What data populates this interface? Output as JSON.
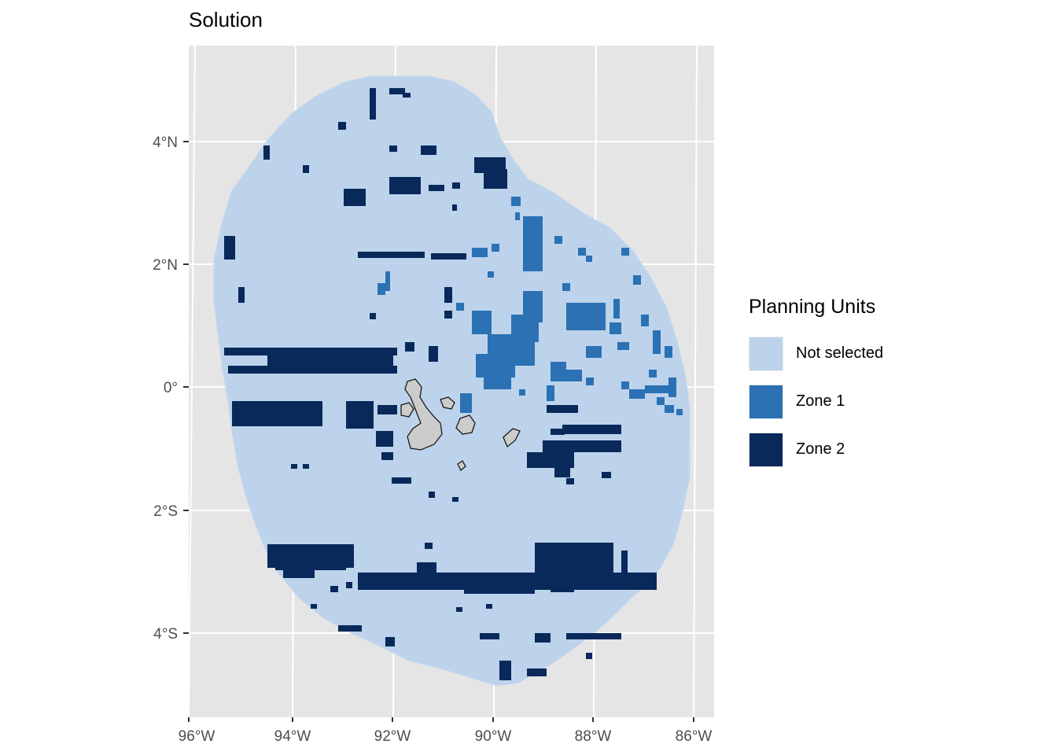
{
  "title": "Solution",
  "axes": {
    "x_ticks": [
      "96°W",
      "94°W",
      "92°W",
      "90°W",
      "88°W",
      "86°W"
    ],
    "y_ticks": [
      "4°N",
      "2°N",
      "0°",
      "2°S",
      "4°S"
    ]
  },
  "legend": {
    "title": "Planning Units",
    "items": [
      {
        "label": "Not selected",
        "color": "#bdd3ec"
      },
      {
        "label": "Zone 1",
        "color": "#2b71b4"
      },
      {
        "label": "Zone 2",
        "color": "#08295a"
      }
    ]
  },
  "colors": {
    "panel_background": "#e5e5e5",
    "grid": "#ffffff",
    "not_selected": "#bdd3ec",
    "zone1": "#2b71b4",
    "zone2": "#08295a",
    "island_fill": "#cccccc",
    "island_stroke": "#1a1a1a"
  },
  "map_data": {
    "type": "planning-unit-solution-map",
    "x_range": [
      "96°W",
      "86°W"
    ],
    "y_range": [
      "5°S",
      "5°N"
    ],
    "land_features": "Galápagos Islands",
    "categories": [
      "Not selected",
      "Zone 1",
      "Zone 2"
    ]
  }
}
